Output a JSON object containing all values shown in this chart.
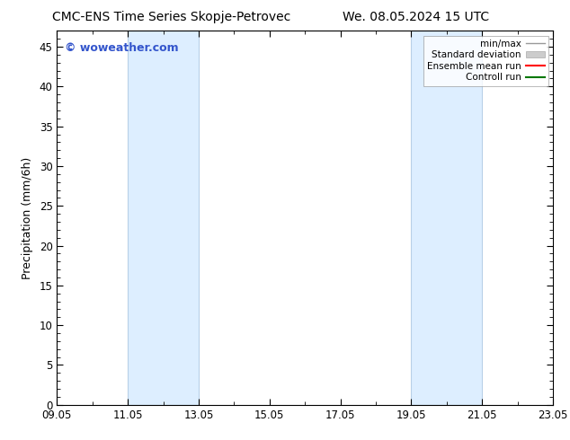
{
  "title_left": "CMC-ENS Time Series Skopje-Petrovec",
  "title_right": "We. 08.05.2024 15 UTC",
  "ylabel": "Precipitation (mm/6h)",
  "xlim": [
    0,
    14
  ],
  "ylim": [
    0,
    47
  ],
  "xtick_positions": [
    0,
    2,
    4,
    6,
    8,
    10,
    12,
    14
  ],
  "xtick_labels": [
    "09.05",
    "11.05",
    "13.05",
    "15.05",
    "17.05",
    "19.05",
    "21.05",
    "23.05"
  ],
  "ytick_positions": [
    0,
    5,
    10,
    15,
    20,
    25,
    30,
    35,
    40,
    45
  ],
  "ytick_labels": [
    "0",
    "5",
    "10",
    "15",
    "20",
    "25",
    "30",
    "35",
    "40",
    "45"
  ],
  "shaded_bands": [
    {
      "x_start": 2.0,
      "x_end": 4.0
    },
    {
      "x_start": 10.0,
      "x_end": 12.0
    }
  ],
  "shaded_color": "#ddeeff",
  "shaded_edge_color": "#b8d0e8",
  "background_color": "#ffffff",
  "plot_bg_color": "#ffffff",
  "watermark_text": "© woweather.com",
  "watermark_color": "#3355cc",
  "legend_items": [
    {
      "label": "min/max",
      "color": "#999999",
      "lw": 1.0,
      "style": "solid",
      "type": "line"
    },
    {
      "label": "Standard deviation",
      "color": "#cccccc",
      "lw": 5,
      "style": "solid",
      "type": "patch"
    },
    {
      "label": "Ensemble mean run",
      "color": "#ff0000",
      "lw": 1.5,
      "style": "solid",
      "type": "line"
    },
    {
      "label": "Controll run",
      "color": "#007700",
      "lw": 1.5,
      "style": "solid",
      "type": "line"
    }
  ],
  "title_fontsize": 10,
  "axis_fontsize": 8.5,
  "ylabel_fontsize": 9,
  "watermark_fontsize": 9
}
